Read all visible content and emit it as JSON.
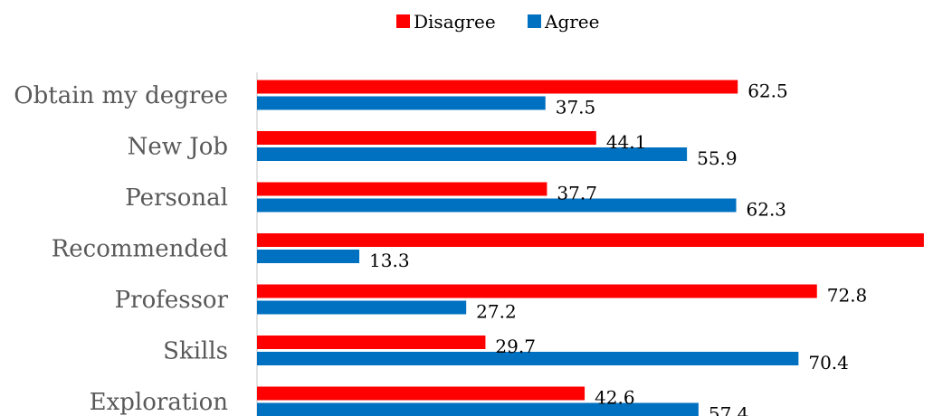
{
  "chart_data": {
    "type": "bar",
    "orientation": "horizontal",
    "categories": [
      "Obtain my degree",
      "New Job",
      "Personal",
      "Recommended",
      "Professor",
      "Skills",
      "Exploration"
    ],
    "series": [
      {
        "name": "Disagree",
        "color": "#ff0000",
        "values": [
          62.5,
          44.1,
          37.7,
          86.7,
          72.8,
          29.7,
          42.6
        ]
      },
      {
        "name": "Agree",
        "color": "#0070c0",
        "values": [
          37.5,
          55.9,
          62.3,
          13.3,
          27.2,
          70.4,
          57.4
        ]
      }
    ],
    "xlim": [
      0,
      100
    ],
    "legend_position": "top-center",
    "grid": false
  }
}
